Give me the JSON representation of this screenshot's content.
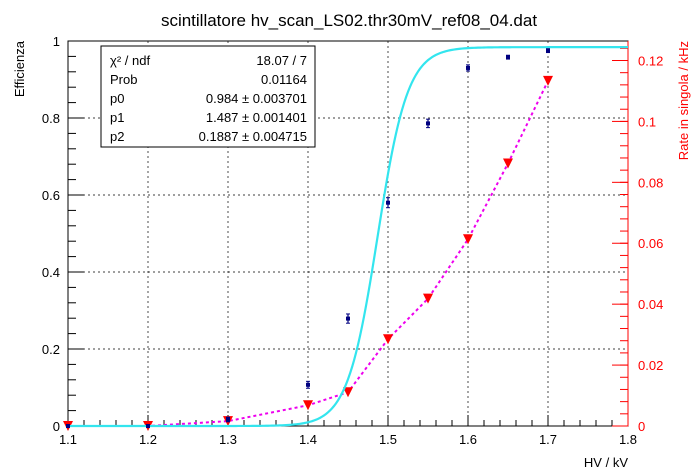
{
  "chart_data": {
    "type": "scatter",
    "title": "scintillatore hv_scan_LS02.thr30mV_ref08_04.dat",
    "xlabel": "HV / kV",
    "ylabel": "Efficienza",
    "y2label": "Rate in singola / kHz",
    "xlim": [
      1.1,
      1.8
    ],
    "ylim": [
      0,
      1.0
    ],
    "y2lim": [
      0,
      0.1264
    ],
    "x_ticks": [
      "1.1",
      "1.2",
      "1.3",
      "1.4",
      "1.5",
      "1.6",
      "1.7",
      "1.8"
    ],
    "y_ticks": [
      "0",
      "0.2",
      "0.4",
      "0.6",
      "0.8",
      "1"
    ],
    "y2_ticks": [
      "0",
      "0.02",
      "0.04",
      "0.06",
      "0.08",
      "0.1",
      "0.12"
    ],
    "grid": true,
    "series": [
      {
        "axis": "left",
        "color": "#000080",
        "x": [
          1.1,
          1.2,
          1.3,
          1.4,
          1.45,
          1.5,
          1.55,
          1.6,
          1.65,
          1.7
        ],
        "values": [
          0.0,
          0.0,
          0.017,
          0.107,
          0.279,
          0.58,
          0.786,
          0.93,
          0.958,
          0.975
        ],
        "errors": [
          0.002,
          0.002,
          0.006,
          0.009,
          0.012,
          0.013,
          0.011,
          0.008,
          0.005,
          0.005
        ]
      },
      {
        "axis": "left",
        "style": "fit-curve",
        "color": "#33e5ee",
        "function": "p0/(1+exp(-(x-p1)/(p2/10)))"
      },
      {
        "axis": "right",
        "color": "#ff0000",
        "line_color": "#ee00ee",
        "marker": "triangle-down",
        "x": [
          1.1,
          1.2,
          1.3,
          1.4,
          1.45,
          1.5,
          1.55,
          1.6,
          1.65,
          1.7
        ],
        "values": [
          0.0,
          0.0,
          0.0016,
          0.0068,
          0.0111,
          0.0285,
          0.0418,
          0.0613,
          0.0862,
          0.1133
        ]
      }
    ],
    "stats": {
      "rows": [
        {
          "label": "χ² / ndf",
          "value": "18.07 / 7"
        },
        {
          "label": "Prob",
          "value": "0.01164"
        },
        {
          "label": "p0",
          "value": "0.984 ± 0.003701"
        },
        {
          "label": "p1",
          "value": "1.487 ± 0.001401"
        },
        {
          "label": "p2",
          "value": "0.1887 ± 0.004715"
        }
      ],
      "p0": 0.984,
      "p1": 1.487,
      "p2": 0.1887
    }
  }
}
